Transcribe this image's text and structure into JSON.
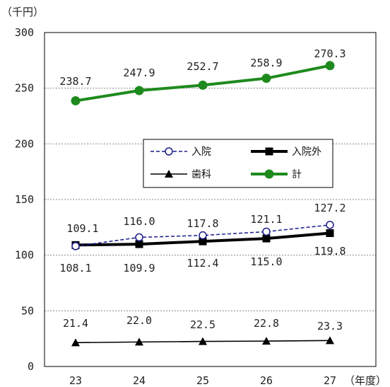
{
  "chart_data": {
    "type": "line",
    "y_unit_label": "（千円）",
    "x_unit_label": "（年度）",
    "categories": [
      "23",
      "24",
      "25",
      "26",
      "27"
    ],
    "ylim": [
      0,
      300
    ],
    "yticks": [
      "0",
      "50",
      "100",
      "150",
      "200",
      "250",
      "300"
    ],
    "grid": "horizontal dotted",
    "legend_position": "center-right",
    "series": [
      {
        "name": "入院",
        "values": [
          108.1,
          116.0,
          117.8,
          121.1,
          127.2
        ],
        "labels": [
          "108.1",
          "116.0",
          "117.8",
          "121.1",
          "127.2"
        ],
        "color": "#1a1a8c",
        "style": "dashed",
        "marker": "open-circle"
      },
      {
        "name": "入院外",
        "values": [
          109.1,
          109.9,
          112.4,
          115.0,
          119.8
        ],
        "labels": [
          "109.1",
          "109.9",
          "112.4",
          "115.0",
          "119.8"
        ],
        "color": "#000000",
        "style": "solid-thick",
        "marker": "square"
      },
      {
        "name": "歯科",
        "values": [
          21.4,
          22.0,
          22.5,
          22.8,
          23.3
        ],
        "labels": [
          "21.4",
          "22.0",
          "22.5",
          "22.8",
          "23.3"
        ],
        "color": "#000000",
        "style": "solid-thin",
        "marker": "triangle"
      },
      {
        "name": "計",
        "values": [
          238.7,
          247.9,
          252.7,
          258.9,
          270.3
        ],
        "labels": [
          "238.7",
          "247.9",
          "252.7",
          "258.9",
          "270.3"
        ],
        "color": "#1e8a1e",
        "style": "solid-thick",
        "marker": "circle"
      }
    ]
  }
}
